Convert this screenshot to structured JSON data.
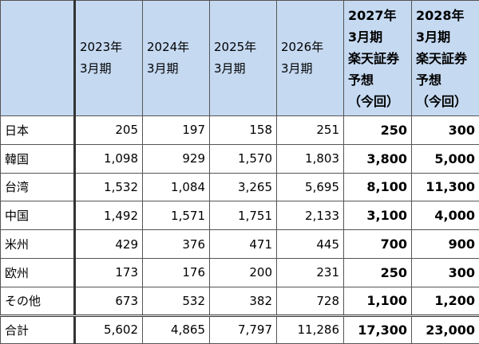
{
  "table": {
    "header": [
      [
        "2023年",
        "3月期"
      ],
      [
        "2024年",
        "3月期"
      ],
      [
        "2025年",
        "3月期"
      ],
      [
        "2026年",
        "3月期"
      ],
      [
        "2027年",
        "3月期",
        "楽天証券",
        "予想",
        "（今回）"
      ],
      [
        "2028年",
        "3月期",
        "楽天証券",
        "予想",
        "（今回）"
      ]
    ],
    "rows": [
      [
        "日本",
        "205",
        "197",
        "158",
        "251",
        "250",
        "300"
      ],
      [
        "韓国",
        "1,098",
        "929",
        "1,570",
        "1,803",
        "3,800",
        "5,000"
      ],
      [
        "台湾",
        "1,532",
        "1,084",
        "3,265",
        "5,695",
        "8,100",
        "11,300"
      ],
      [
        "中国",
        "1,492",
        "1,571",
        "1,751",
        "2,133",
        "3,100",
        "4,000"
      ],
      [
        "米州",
        "429",
        "376",
        "471",
        "445",
        "700",
        "900"
      ],
      [
        "欧州",
        "173",
        "176",
        "200",
        "231",
        "250",
        "300"
      ],
      [
        "その他",
        "673",
        "532",
        "382",
        "728",
        "1,100",
        "1,200"
      ],
      [
        "合計",
        "5,602",
        "4,865",
        "7,797",
        "11,286",
        "17,300",
        "23,000"
      ]
    ]
  }
}
